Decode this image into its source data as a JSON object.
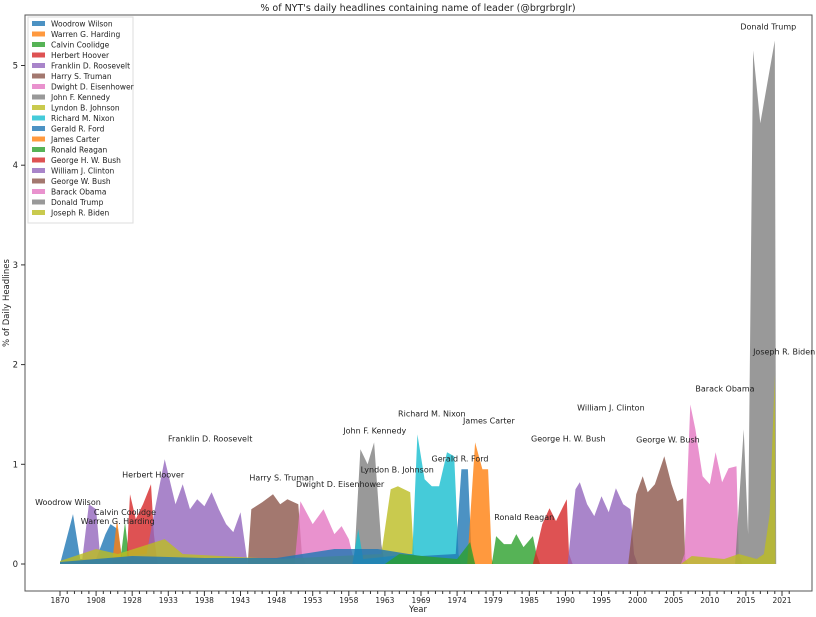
{
  "chart_data": {
    "type": "area",
    "title": "% of NYT's daily headlines containing name of leader  (@brgrbrglr)",
    "xlabel": "Year",
    "ylabel": "% of Daily Headlines",
    "x_tick_labels": [
      "1870",
      "1908",
      "1928",
      "1933",
      "1938",
      "1943",
      "1948",
      "1953",
      "1958",
      "1963",
      "1969",
      "1974",
      "1979",
      "1985",
      "1990",
      "1995",
      "2000",
      "2005",
      "2010",
      "2015",
      "2021"
    ],
    "x_tick_step": 5,
    "x_range": [
      0,
      101
    ],
    "y_ticks": [
      0,
      1,
      2,
      3,
      4,
      5
    ],
    "ylim": [
      -0.25,
      5.5
    ],
    "grid": false,
    "legend_placement": "top-left",
    "colors": [
      "#1f77b4",
      "#ff7f0e",
      "#2ca02c",
      "#d62728",
      "#9467bd",
      "#8c564b",
      "#e377c2",
      "#7f7f7f",
      "#bcbd22",
      "#17becf"
    ],
    "series": [
      {
        "name": "Woodrow Wilson",
        "points": [
          [
            0,
            0
          ],
          [
            1.8,
            0.5
          ],
          [
            2.8,
            0.05
          ],
          [
            5,
            0.05
          ],
          [
            6.3,
            0.3
          ],
          [
            7,
            0.4
          ],
          [
            8,
            0.35
          ],
          [
            8.6,
            0.05
          ],
          [
            9,
            0
          ]
        ]
      },
      {
        "name": "Warren G. Harding",
        "points": [
          [
            7.2,
            0
          ],
          [
            7.9,
            0.45
          ],
          [
            8.5,
            0.1
          ],
          [
            9,
            0
          ]
        ]
      },
      {
        "name": "Calvin Coolidge",
        "points": [
          [
            8.3,
            0
          ],
          [
            9,
            0.42
          ],
          [
            9.6,
            0.05
          ],
          [
            10,
            0
          ]
        ]
      },
      {
        "name": "Herbert Hoover",
        "points": [
          [
            9.2,
            0
          ],
          [
            9.7,
            0.7
          ],
          [
            10.5,
            0.45
          ],
          [
            11.5,
            0.6
          ],
          [
            12.6,
            0.8
          ],
          [
            13,
            0.3
          ],
          [
            13.5,
            0
          ]
        ]
      },
      {
        "name": "Franklin D. Roosevelt",
        "points": [
          [
            3,
            0
          ],
          [
            4,
            0.6
          ],
          [
            5,
            0.55
          ],
          [
            5.6,
            0.05
          ],
          [
            12,
            0.1
          ],
          [
            13,
            0.5
          ],
          [
            14.5,
            1.05
          ],
          [
            16,
            0.6
          ],
          [
            17,
            0.8
          ],
          [
            18,
            0.55
          ],
          [
            19,
            0.65
          ],
          [
            20,
            0.58
          ],
          [
            21,
            0.72
          ],
          [
            22,
            0.55
          ],
          [
            23,
            0.4
          ],
          [
            24,
            0.32
          ],
          [
            25,
            0.52
          ],
          [
            25.8,
            0.1
          ],
          [
            26,
            0
          ]
        ]
      },
      {
        "name": "Harry S. Truman",
        "points": [
          [
            26,
            0
          ],
          [
            26.5,
            0.55
          ],
          [
            28,
            0.62
          ],
          [
            29.5,
            0.7
          ],
          [
            30.5,
            0.6
          ],
          [
            31.5,
            0.65
          ],
          [
            33,
            0.6
          ],
          [
            33.5,
            0.1
          ],
          [
            34,
            0
          ]
        ]
      },
      {
        "name": "Dwight D. Eisenhower",
        "points": [
          [
            32.5,
            0
          ],
          [
            33.3,
            0.63
          ],
          [
            35,
            0.4
          ],
          [
            36.5,
            0.55
          ],
          [
            38,
            0.3
          ],
          [
            39,
            0.38
          ],
          [
            40,
            0.25
          ],
          [
            40.5,
            0.1
          ],
          [
            41,
            0
          ]
        ]
      },
      {
        "name": "John F. Kennedy",
        "points": [
          [
            40.5,
            0
          ],
          [
            40.8,
            0.1
          ],
          [
            41.6,
            1.15
          ],
          [
            42.6,
            1.0
          ],
          [
            43.5,
            1.22
          ],
          [
            44.5,
            0.2
          ],
          [
            45,
            0
          ]
        ]
      },
      {
        "name": "Lyndon B. Johnson",
        "points": [
          [
            0,
            0.03
          ],
          [
            5,
            0.15
          ],
          [
            8,
            0.1
          ],
          [
            14.5,
            0.25
          ],
          [
            17,
            0.1
          ],
          [
            30,
            0.05
          ],
          [
            44.5,
            0.1
          ],
          [
            45.8,
            0.75
          ],
          [
            46.8,
            0.78
          ],
          [
            48.5,
            0.72
          ],
          [
            49,
            0.1
          ],
          [
            49.5,
            0
          ]
        ]
      },
      {
        "name": "Richard M. Nixon",
        "points": [
          [
            40.5,
            0
          ],
          [
            41.3,
            0.35
          ],
          [
            42,
            0.05
          ],
          [
            48.8,
            0.1
          ],
          [
            49.5,
            1.3
          ],
          [
            50.5,
            0.85
          ],
          [
            51.5,
            0.78
          ],
          [
            52.5,
            0.78
          ],
          [
            53.6,
            1.12
          ],
          [
            54.6,
            1.08
          ],
          [
            55.2,
            0.1
          ],
          [
            55.5,
            0
          ]
        ]
      },
      {
        "name": "Gerald R. Ford",
        "points": [
          [
            0,
            0.02
          ],
          [
            10,
            0.08
          ],
          [
            20,
            0.06
          ],
          [
            30,
            0.06
          ],
          [
            38,
            0.15
          ],
          [
            44,
            0.15
          ],
          [
            50,
            0.08
          ],
          [
            54.8,
            0.1
          ],
          [
            55.6,
            0.95
          ],
          [
            56.5,
            0.95
          ],
          [
            57,
            0.1
          ],
          [
            57.5,
            0
          ]
        ]
      },
      {
        "name": "James Carter",
        "points": [
          [
            56.4,
            0
          ],
          [
            57.5,
            1.22
          ],
          [
            58.5,
            0.95
          ],
          [
            59.3,
            0.95
          ],
          [
            59.8,
            0.05
          ],
          [
            60,
            0
          ]
        ]
      },
      {
        "name": "Ronald Reagan",
        "points": [
          [
            45,
            0
          ],
          [
            47,
            0.1
          ],
          [
            55,
            0.05
          ],
          [
            56.8,
            0.22
          ],
          [
            57.5,
            0
          ],
          [
            59.8,
            0
          ],
          [
            60.4,
            0.28
          ],
          [
            61.5,
            0.2
          ],
          [
            62.5,
            0.2
          ],
          [
            63.2,
            0.3
          ],
          [
            64.2,
            0.17
          ],
          [
            65.5,
            0.28
          ],
          [
            66,
            0.1
          ],
          [
            66.5,
            0
          ]
        ]
      },
      {
        "name": "George H. W. Bush",
        "points": [
          [
            65.5,
            0
          ],
          [
            66.8,
            0.4
          ],
          [
            67.8,
            0.56
          ],
          [
            68.7,
            0.43
          ],
          [
            69.5,
            0.55
          ],
          [
            70.2,
            0.65
          ],
          [
            70.5,
            0.1
          ],
          [
            71,
            0
          ]
        ]
      },
      {
        "name": "William J. Clinton",
        "points": [
          [
            70.3,
            0
          ],
          [
            71.4,
            0.75
          ],
          [
            72,
            0.82
          ],
          [
            73,
            0.6
          ],
          [
            74,
            0.48
          ],
          [
            75,
            0.68
          ],
          [
            76,
            0.52
          ],
          [
            77,
            0.76
          ],
          [
            78,
            0.6
          ],
          [
            79,
            0.55
          ],
          [
            79.5,
            0.1
          ],
          [
            80,
            0
          ]
        ]
      },
      {
        "name": "George W. Bush",
        "points": [
          [
            78.7,
            0
          ],
          [
            79.8,
            0.7
          ],
          [
            80.7,
            0.88
          ],
          [
            81.4,
            0.72
          ],
          [
            82.4,
            0.8
          ],
          [
            83.7,
            1.08
          ],
          [
            84.7,
            0.8
          ],
          [
            85.5,
            0.63
          ],
          [
            86.3,
            0.66
          ],
          [
            86.6,
            0.05
          ],
          [
            87,
            0
          ]
        ]
      },
      {
        "name": "Barack Obama",
        "points": [
          [
            86,
            0
          ],
          [
            86.5,
            0.1
          ],
          [
            87.3,
            1.6
          ],
          [
            88,
            1.35
          ],
          [
            89,
            0.88
          ],
          [
            90,
            0.8
          ],
          [
            90.8,
            1.12
          ],
          [
            91.7,
            0.82
          ],
          [
            92.6,
            0.96
          ],
          [
            93.7,
            0.98
          ],
          [
            94,
            0.1
          ],
          [
            94.5,
            0
          ]
        ]
      },
      {
        "name": "Donald Trump",
        "points": [
          [
            93.5,
            0
          ],
          [
            94.7,
            1.35
          ],
          [
            95.3,
            0.3
          ],
          [
            96,
            5.15
          ],
          [
            97,
            4.42
          ],
          [
            99,
            5.25
          ],
          [
            99.2,
            0
          ]
        ]
      },
      {
        "name": "Joseph R. Biden",
        "points": [
          [
            86,
            0
          ],
          [
            87.5,
            0.08
          ],
          [
            92,
            0.05
          ],
          [
            94,
            0.1
          ],
          [
            96.5,
            0.05
          ],
          [
            97.5,
            0.1
          ],
          [
            98.3,
            0.5
          ],
          [
            99,
            1.9
          ],
          [
            99.1,
            0
          ]
        ]
      }
    ],
    "annotations": [
      {
        "text": "Woodrow Wilson",
        "x": 1.1,
        "y": 0.59
      },
      {
        "text": "Warren G. Harding",
        "x": 8,
        "y": 0.4
      },
      {
        "text": "Calvin Coolidge",
        "x": 9,
        "y": 0.49
      },
      {
        "text": "Herbert Hoover",
        "x": 12.9,
        "y": 0.87
      },
      {
        "text": "Franklin D. Roosevelt",
        "x": 20.8,
        "y": 1.23
      },
      {
        "text": "Harry S. Truman",
        "x": 30.7,
        "y": 0.84
      },
      {
        "text": "Dwight D. Eisenhower",
        "x": 38.8,
        "y": 0.77
      },
      {
        "text": "John F. Kennedy",
        "x": 43.6,
        "y": 1.31
      },
      {
        "text": "Lyndon B. Johnson",
        "x": 46.7,
        "y": 0.92
      },
      {
        "text": "Richard M. Nixon",
        "x": 51.5,
        "y": 1.48
      },
      {
        "text": "Gerald R. Ford",
        "x": 55.4,
        "y": 1.03
      },
      {
        "text": "James Carter",
        "x": 59.4,
        "y": 1.41
      },
      {
        "text": "Ronald Reagan",
        "x": 64.3,
        "y": 0.44
      },
      {
        "text": "George H. W. Bush",
        "x": 70.4,
        "y": 1.23
      },
      {
        "text": "William J. Clinton",
        "x": 76.3,
        "y": 1.54
      },
      {
        "text": "George W. Bush",
        "x": 84.2,
        "y": 1.22
      },
      {
        "text": "Barack Obama",
        "x": 92.1,
        "y": 1.73
      },
      {
        "text": "Donald Trump",
        "x": 98.1,
        "y": 5.36
      },
      {
        "text": "Joseph R. Biden",
        "x": 100.3,
        "y": 2.1
      }
    ]
  }
}
